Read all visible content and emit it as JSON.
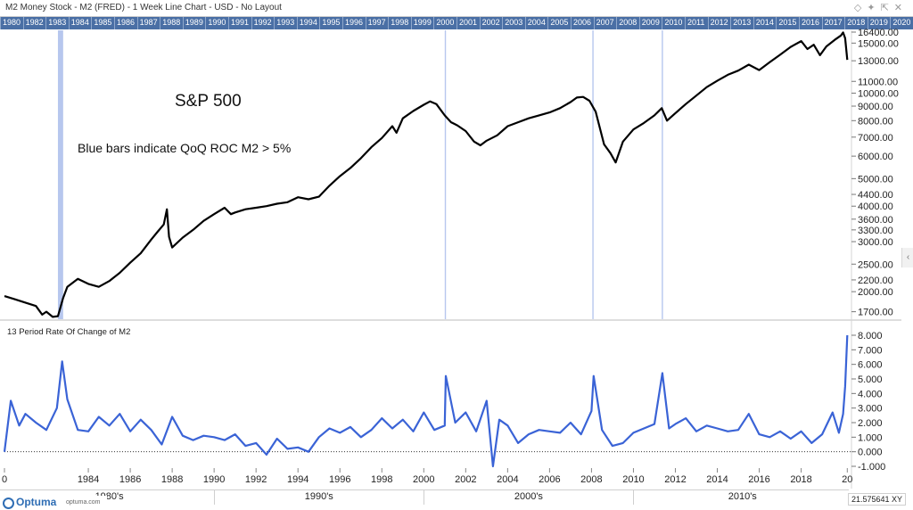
{
  "window": {
    "title": "M2 Money Stock - M2 (FRED) - 1 Week Line Chart - USD - No Layout"
  },
  "toolbar_icons": [
    "diamond-icon",
    "pin-icon",
    "expand-icon",
    "close-icon"
  ],
  "colors": {
    "price_line": "#000000",
    "roc_line": "#3a63d6",
    "blue_bar": "#b7c7ee",
    "year_bar": "#4a6fa5"
  },
  "year_axis": [
    "1980",
    "1982",
    "1983",
    "1984",
    "1985",
    "1986",
    "1987",
    "1988",
    "1989",
    "1990",
    "1991",
    "1992",
    "1993",
    "1994",
    "1995",
    "1996",
    "1997",
    "1998",
    "1999",
    "2000",
    "2001",
    "2002",
    "2003",
    "2004",
    "2005",
    "2006",
    "2007",
    "2008",
    "2009",
    "2010",
    "2011",
    "2012",
    "2013",
    "2014",
    "2015",
    "2016",
    "2017",
    "2018",
    "2019",
    "2020"
  ],
  "decade_row": [
    "1980's",
    "1990's",
    "2000's",
    "2010's"
  ],
  "readout": "21.575641 XY",
  "branding": {
    "name": "Optuma",
    "site": "optuma.com"
  },
  "chart_data": [
    {
      "type": "line",
      "title": "S&P 500",
      "annotation": "Blue bars indicate QoQ ROC M2 > 5%",
      "y_scale": "log",
      "ylim": [
        1600,
        16400
      ],
      "y_ticks": [
        "16400.00",
        "15000.00",
        "13000.00",
        "11000.00",
        "10000.00",
        "9000.00",
        "8000.00",
        "7000.00",
        "6000.00",
        "5000.00",
        "4400.00",
        "4000.00",
        "3600.00",
        "3300.00",
        "3000.00",
        "2500.00",
        "2200.00",
        "2000.00",
        "1700.00"
      ],
      "xlim": [
        1980.0,
        2020.4
      ],
      "highlight_bars": [
        {
          "start": 1982.55,
          "end": 1982.8
        },
        {
          "start": 2001.0,
          "end": 2001.06
        },
        {
          "start": 2008.04,
          "end": 2008.1
        },
        {
          "start": 2011.35,
          "end": 2011.41
        }
      ],
      "series": [
        {
          "points": [
            [
              1980.0,
              1930
            ],
            [
              1980.5,
              1880
            ],
            [
              1981.0,
              1830
            ],
            [
              1981.5,
              1780
            ],
            [
              1981.8,
              1660
            ],
            [
              1982.0,
              1700
            ],
            [
              1982.3,
              1630
            ],
            [
              1982.55,
              1640
            ],
            [
              1982.8,
              1900
            ],
            [
              1983.0,
              2080
            ],
            [
              1983.5,
              2220
            ],
            [
              1984.0,
              2130
            ],
            [
              1984.5,
              2080
            ],
            [
              1985.0,
              2180
            ],
            [
              1985.5,
              2330
            ],
            [
              1986.0,
              2530
            ],
            [
              1986.5,
              2730
            ],
            [
              1987.0,
              3050
            ],
            [
              1987.3,
              3250
            ],
            [
              1987.6,
              3450
            ],
            [
              1987.75,
              3900
            ],
            [
              1987.85,
              3120
            ],
            [
              1988.0,
              2860
            ],
            [
              1988.5,
              3100
            ],
            [
              1989.0,
              3300
            ],
            [
              1989.5,
              3550
            ],
            [
              1990.0,
              3750
            ],
            [
              1990.5,
              3950
            ],
            [
              1990.8,
              3750
            ],
            [
              1991.0,
              3800
            ],
            [
              1991.5,
              3900
            ],
            [
              1992.0,
              3950
            ],
            [
              1992.5,
              4000
            ],
            [
              1993.0,
              4080
            ],
            [
              1993.5,
              4130
            ],
            [
              1994.0,
              4300
            ],
            [
              1994.5,
              4230
            ],
            [
              1995.0,
              4320
            ],
            [
              1995.5,
              4720
            ],
            [
              1996.0,
              5100
            ],
            [
              1996.5,
              5450
            ],
            [
              1997.0,
              5900
            ],
            [
              1997.5,
              6450
            ],
            [
              1998.0,
              6950
            ],
            [
              1998.5,
              7650
            ],
            [
              1998.7,
              7250
            ],
            [
              1999.0,
              8150
            ],
            [
              1999.5,
              8650
            ],
            [
              2000.0,
              9100
            ],
            [
              2000.3,
              9350
            ],
            [
              2000.6,
              9150
            ],
            [
              2001.0,
              8350
            ],
            [
              2001.3,
              7900
            ],
            [
              2001.6,
              7700
            ],
            [
              2002.0,
              7350
            ],
            [
              2002.4,
              6750
            ],
            [
              2002.7,
              6550
            ],
            [
              2003.0,
              6800
            ],
            [
              2003.5,
              7100
            ],
            [
              2004.0,
              7650
            ],
            [
              2004.5,
              7900
            ],
            [
              2005.0,
              8150
            ],
            [
              2005.5,
              8350
            ],
            [
              2006.0,
              8550
            ],
            [
              2006.5,
              8850
            ],
            [
              2007.0,
              9300
            ],
            [
              2007.3,
              9650
            ],
            [
              2007.6,
              9700
            ],
            [
              2007.9,
              9400
            ],
            [
              2008.2,
              8600
            ],
            [
              2008.6,
              6600
            ],
            [
              2008.9,
              6150
            ],
            [
              2009.15,
              5700
            ],
            [
              2009.5,
              6750
            ],
            [
              2010.0,
              7450
            ],
            [
              2010.5,
              7850
            ],
            [
              2011.0,
              8350
            ],
            [
              2011.35,
              8850
            ],
            [
              2011.6,
              8000
            ],
            [
              2012.0,
              8500
            ],
            [
              2012.5,
              9150
            ],
            [
              2013.0,
              9800
            ],
            [
              2013.5,
              10500
            ],
            [
              2014.0,
              11050
            ],
            [
              2014.5,
              11600
            ],
            [
              2015.0,
              12000
            ],
            [
              2015.5,
              12600
            ],
            [
              2016.0,
              12050
            ],
            [
              2016.5,
              12850
            ],
            [
              2017.0,
              13650
            ],
            [
              2017.5,
              14550
            ],
            [
              2018.0,
              15250
            ],
            [
              2018.3,
              14300
            ],
            [
              2018.6,
              14800
            ],
            [
              2018.9,
              13600
            ],
            [
              2019.2,
              14600
            ],
            [
              2019.6,
              15400
            ],
            [
              2019.9,
              15950
            ],
            [
              2020.0,
              16350
            ],
            [
              2020.1,
              15600
            ],
            [
              2020.2,
              13100
            ]
          ]
        }
      ]
    },
    {
      "type": "line",
      "title": "13 Period Rate Of Change of M2",
      "ylim": [
        -1.0,
        8.0
      ],
      "y_ticks": [
        "8.000",
        "7.000",
        "6.000",
        "5.000",
        "4.000",
        "3.000",
        "2.000",
        "1.000",
        "0.000",
        "-1.000"
      ],
      "zero_line": true,
      "x_ticks": [
        "0",
        "1984",
        "1986",
        "1988",
        "1990",
        "1992",
        "1994",
        "1996",
        "1998",
        "2000",
        "2002",
        "2004",
        "2006",
        "2008",
        "2010",
        "2012",
        "2014",
        "2016",
        "2018",
        "20"
      ],
      "series": [
        {
          "points": [
            [
              1980.0,
              0.0
            ],
            [
              1980.3,
              3.5
            ],
            [
              1980.7,
              1.8
            ],
            [
              1981.0,
              2.6
            ],
            [
              1981.5,
              2.0
            ],
            [
              1982.0,
              1.5
            ],
            [
              1982.5,
              3.0
            ],
            [
              1982.75,
              6.2
            ],
            [
              1983.0,
              3.6
            ],
            [
              1983.5,
              1.5
            ],
            [
              1984.0,
              1.4
            ],
            [
              1984.5,
              2.4
            ],
            [
              1985.0,
              1.8
            ],
            [
              1985.5,
              2.6
            ],
            [
              1986.0,
              1.4
            ],
            [
              1986.5,
              2.2
            ],
            [
              1987.0,
              1.5
            ],
            [
              1987.5,
              0.5
            ],
            [
              1988.0,
              2.4
            ],
            [
              1988.5,
              1.1
            ],
            [
              1989.0,
              0.8
            ],
            [
              1989.5,
              1.1
            ],
            [
              1990.0,
              1.0
            ],
            [
              1990.5,
              0.8
            ],
            [
              1991.0,
              1.2
            ],
            [
              1991.5,
              0.4
            ],
            [
              1992.0,
              0.6
            ],
            [
              1992.5,
              -0.2
            ],
            [
              1993.0,
              0.9
            ],
            [
              1993.5,
              0.2
            ],
            [
              1994.0,
              0.3
            ],
            [
              1994.5,
              0.0
            ],
            [
              1995.0,
              1.0
            ],
            [
              1995.5,
              1.6
            ],
            [
              1996.0,
              1.3
            ],
            [
              1996.5,
              1.7
            ],
            [
              1997.0,
              1.0
            ],
            [
              1997.5,
              1.5
            ],
            [
              1998.0,
              2.3
            ],
            [
              1998.5,
              1.6
            ],
            [
              1999.0,
              2.2
            ],
            [
              1999.5,
              1.4
            ],
            [
              2000.0,
              2.7
            ],
            [
              2000.5,
              1.5
            ],
            [
              2001.0,
              1.8
            ],
            [
              2001.05,
              5.2
            ],
            [
              2001.5,
              2.0
            ],
            [
              2002.0,
              2.7
            ],
            [
              2002.5,
              1.4
            ],
            [
              2003.0,
              3.5
            ],
            [
              2003.3,
              -1.0
            ],
            [
              2003.6,
              2.2
            ],
            [
              2004.0,
              1.8
            ],
            [
              2004.5,
              0.6
            ],
            [
              2005.0,
              1.2
            ],
            [
              2005.5,
              1.5
            ],
            [
              2006.0,
              1.4
            ],
            [
              2006.5,
              1.3
            ],
            [
              2007.0,
              2.0
            ],
            [
              2007.5,
              1.2
            ],
            [
              2008.0,
              2.8
            ],
            [
              2008.1,
              5.2
            ],
            [
              2008.5,
              1.5
            ],
            [
              2009.0,
              0.4
            ],
            [
              2009.5,
              0.6
            ],
            [
              2010.0,
              1.3
            ],
            [
              2010.5,
              1.6
            ],
            [
              2011.0,
              1.9
            ],
            [
              2011.38,
              5.4
            ],
            [
              2011.7,
              1.6
            ],
            [
              2012.0,
              1.9
            ],
            [
              2012.5,
              2.3
            ],
            [
              2013.0,
              1.4
            ],
            [
              2013.5,
              1.8
            ],
            [
              2014.0,
              1.6
            ],
            [
              2014.5,
              1.4
            ],
            [
              2015.0,
              1.5
            ],
            [
              2015.5,
              2.6
            ],
            [
              2016.0,
              1.2
            ],
            [
              2016.5,
              1.0
            ],
            [
              2017.0,
              1.4
            ],
            [
              2017.5,
              0.9
            ],
            [
              2018.0,
              1.4
            ],
            [
              2018.5,
              0.6
            ],
            [
              2019.0,
              1.2
            ],
            [
              2019.5,
              2.7
            ],
            [
              2019.8,
              1.3
            ],
            [
              2020.0,
              2.6
            ],
            [
              2020.1,
              4.5
            ],
            [
              2020.2,
              8.0
            ]
          ]
        }
      ]
    }
  ]
}
